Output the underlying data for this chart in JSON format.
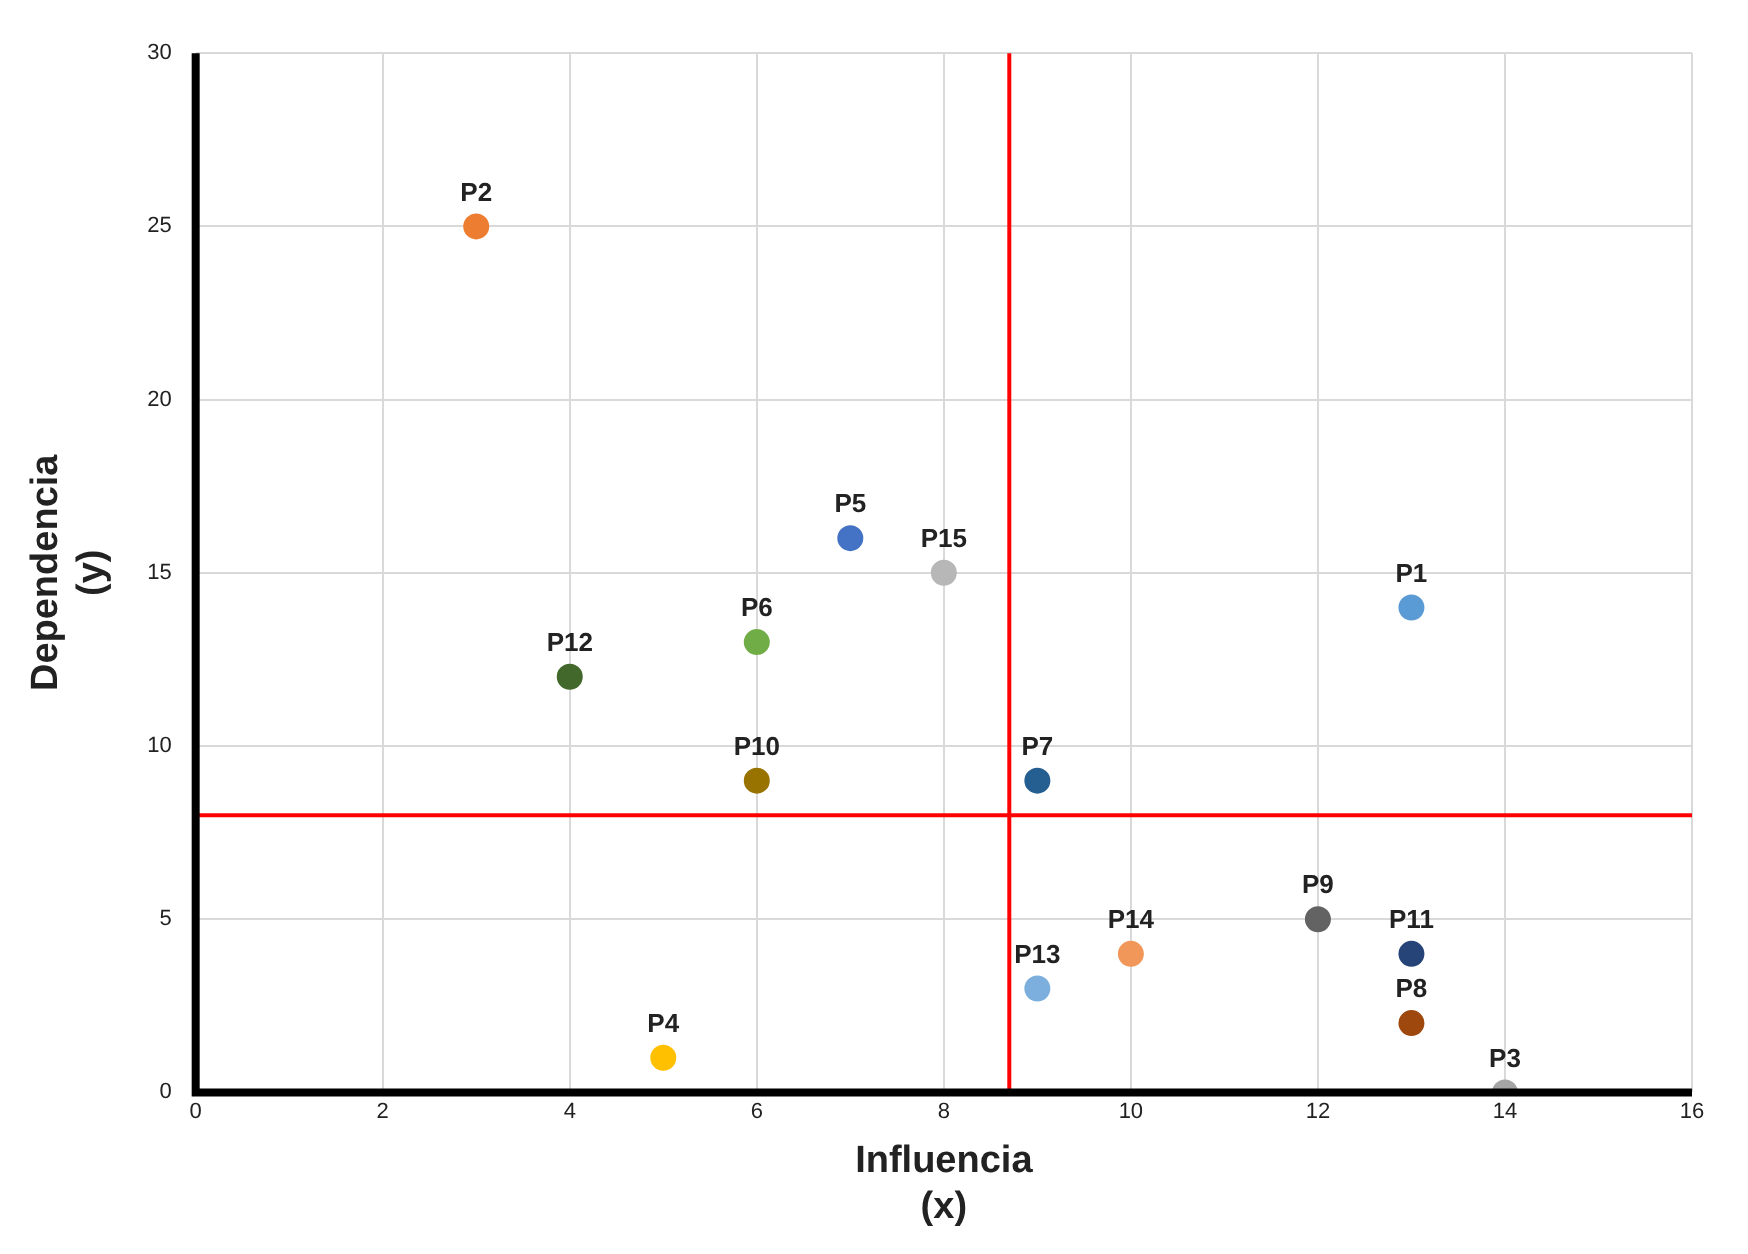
{
  "chart_data": {
    "type": "scatter",
    "xlabel": "Influencia\n(x)",
    "ylabel": "Dependencia\n(y)",
    "xlim": [
      0,
      16
    ],
    "xticks": [
      0,
      2,
      4,
      6,
      8,
      10,
      12,
      14,
      16
    ],
    "ylim": [
      0,
      30
    ],
    "yticks": [
      0,
      5,
      10,
      15,
      20,
      25,
      30
    ],
    "grid": true,
    "legend": false,
    "marker": "circle",
    "series": [
      {
        "name": "P1",
        "color": "#5b9bd5",
        "x": [
          13
        ],
        "values": [
          14
        ]
      },
      {
        "name": "P2",
        "color": "#ed7d31",
        "x": [
          3
        ],
        "values": [
          25
        ]
      },
      {
        "name": "P3",
        "color": "#a5a5a5",
        "x": [
          14
        ],
        "values": [
          0
        ]
      },
      {
        "name": "P4",
        "color": "#ffc000",
        "x": [
          5
        ],
        "values": [
          1
        ]
      },
      {
        "name": "P5",
        "color": "#4472c4",
        "x": [
          7
        ],
        "values": [
          16
        ]
      },
      {
        "name": "P6",
        "color": "#70ad47",
        "x": [
          6
        ],
        "values": [
          13
        ]
      },
      {
        "name": "P7",
        "color": "#255e91",
        "x": [
          9
        ],
        "values": [
          9
        ]
      },
      {
        "name": "P8",
        "color": "#9e480e",
        "x": [
          13
        ],
        "values": [
          2
        ]
      },
      {
        "name": "P9",
        "color": "#636363",
        "x": [
          12
        ],
        "values": [
          5
        ]
      },
      {
        "name": "P10",
        "color": "#997300",
        "x": [
          6
        ],
        "values": [
          9
        ]
      },
      {
        "name": "P11",
        "color": "#264478",
        "x": [
          13
        ],
        "values": [
          4
        ]
      },
      {
        "name": "P12",
        "color": "#43682b",
        "x": [
          4
        ],
        "values": [
          12
        ]
      },
      {
        "name": "P13",
        "color": "#7cafdd",
        "x": [
          9
        ],
        "values": [
          3
        ]
      },
      {
        "name": "P14",
        "color": "#f1975a",
        "x": [
          10
        ],
        "values": [
          4
        ]
      },
      {
        "name": "P15",
        "color": "#b7b7b7",
        "x": [
          8
        ],
        "values": [
          15
        ]
      }
    ],
    "ref_lines": [
      {
        "axis": "x",
        "value": 8.7,
        "color": "#ff0000"
      },
      {
        "axis": "y",
        "value": 8,
        "color": "#ff0000"
      }
    ]
  }
}
